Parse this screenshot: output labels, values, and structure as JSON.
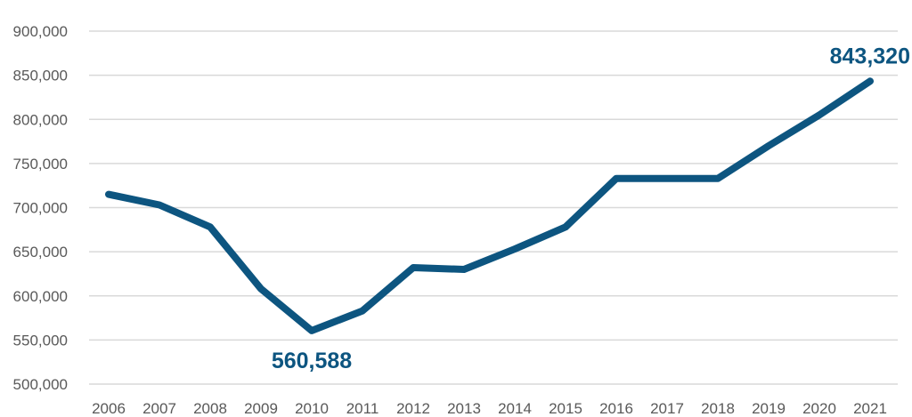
{
  "chart_data": {
    "type": "line",
    "title": "",
    "xlabel": "",
    "ylabel": "",
    "categories": [
      "2006",
      "2007",
      "2008",
      "2009",
      "2010",
      "2011",
      "2012",
      "2013",
      "2014",
      "2015",
      "2016",
      "2017",
      "2018",
      "2019",
      "2020",
      "2021"
    ],
    "series": [
      {
        "values": [
          715000,
          703000,
          678000,
          608000,
          560588,
          583000,
          632000,
          630000,
          653000,
          678000,
          733000,
          733000,
          733000,
          770000,
          805000,
          843320
        ],
        "color": "#0d5580"
      }
    ],
    "ylim": [
      500000,
      900000
    ],
    "yticks": [
      "500,000",
      "550,000",
      "600,000",
      "650,000",
      "700,000",
      "750,000",
      "800,000",
      "850,000",
      "900,000"
    ],
    "ytick_values": [
      500000,
      550000,
      600000,
      650000,
      700000,
      750000,
      800000,
      850000,
      900000
    ],
    "grid": true,
    "legend": "none",
    "annotations": [
      {
        "label": "560,588",
        "index": 4,
        "position": "below"
      },
      {
        "label": "843,320",
        "index": 15,
        "position": "above"
      }
    ]
  }
}
